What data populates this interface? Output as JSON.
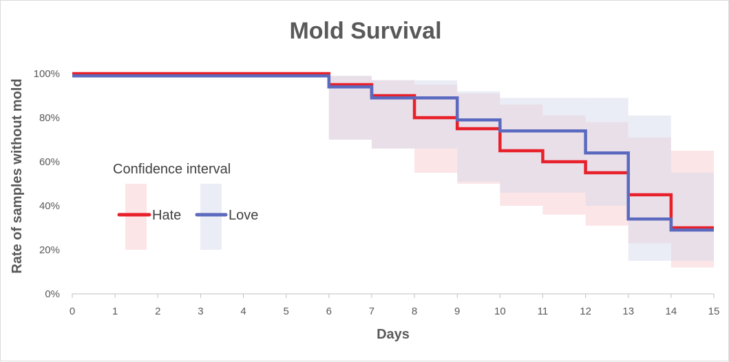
{
  "chart_data": {
    "type": "line",
    "title": "Mold Survival",
    "xlabel": "Days",
    "ylabel": "Rate of samples without mold",
    "xlim": [
      0,
      15
    ],
    "ylim": [
      0,
      100
    ],
    "x_ticks": [
      "0",
      "1",
      "2",
      "3",
      "4",
      "5",
      "6",
      "7",
      "8",
      "9",
      "10",
      "11",
      "12",
      "13",
      "14",
      "15"
    ],
    "y_ticks": [
      "0%",
      "20%",
      "40%",
      "60%",
      "80%",
      "100%"
    ],
    "grid": false,
    "legend": {
      "title": "Confidence interval",
      "placement": "left",
      "entries": [
        "Hate",
        "Love"
      ]
    },
    "series": [
      {
        "name": "Hate",
        "color": "#e8202a",
        "ci_color": "#f6c6c9",
        "step": true,
        "x": [
          0,
          6,
          7,
          8,
          9,
          10,
          11,
          12,
          13,
          14,
          15
        ],
        "y": [
          100,
          95,
          90,
          80,
          75,
          65,
          60,
          55,
          45,
          30,
          30
        ],
        "ci_lower": [
          100,
          70,
          66,
          55,
          50,
          40,
          36,
          31,
          23,
          12,
          12
        ],
        "ci_upper": [
          100,
          99,
          97,
          95,
          91,
          86,
          81,
          78,
          71,
          65,
          50
        ]
      },
      {
        "name": "Love",
        "color": "#5b6abf",
        "ci_color": "#d3d8ec",
        "step": true,
        "x": [
          0,
          6,
          7,
          9,
          10,
          12,
          13,
          14,
          15
        ],
        "y": [
          99,
          94,
          89,
          79,
          74,
          64,
          34,
          29,
          29
        ],
        "ci_lower": [
          99,
          70,
          66,
          51,
          46,
          40,
          15,
          15,
          15
        ],
        "ci_upper": [
          99,
          99,
          97,
          92,
          89,
          89,
          81,
          55,
          50
        ]
      }
    ]
  }
}
